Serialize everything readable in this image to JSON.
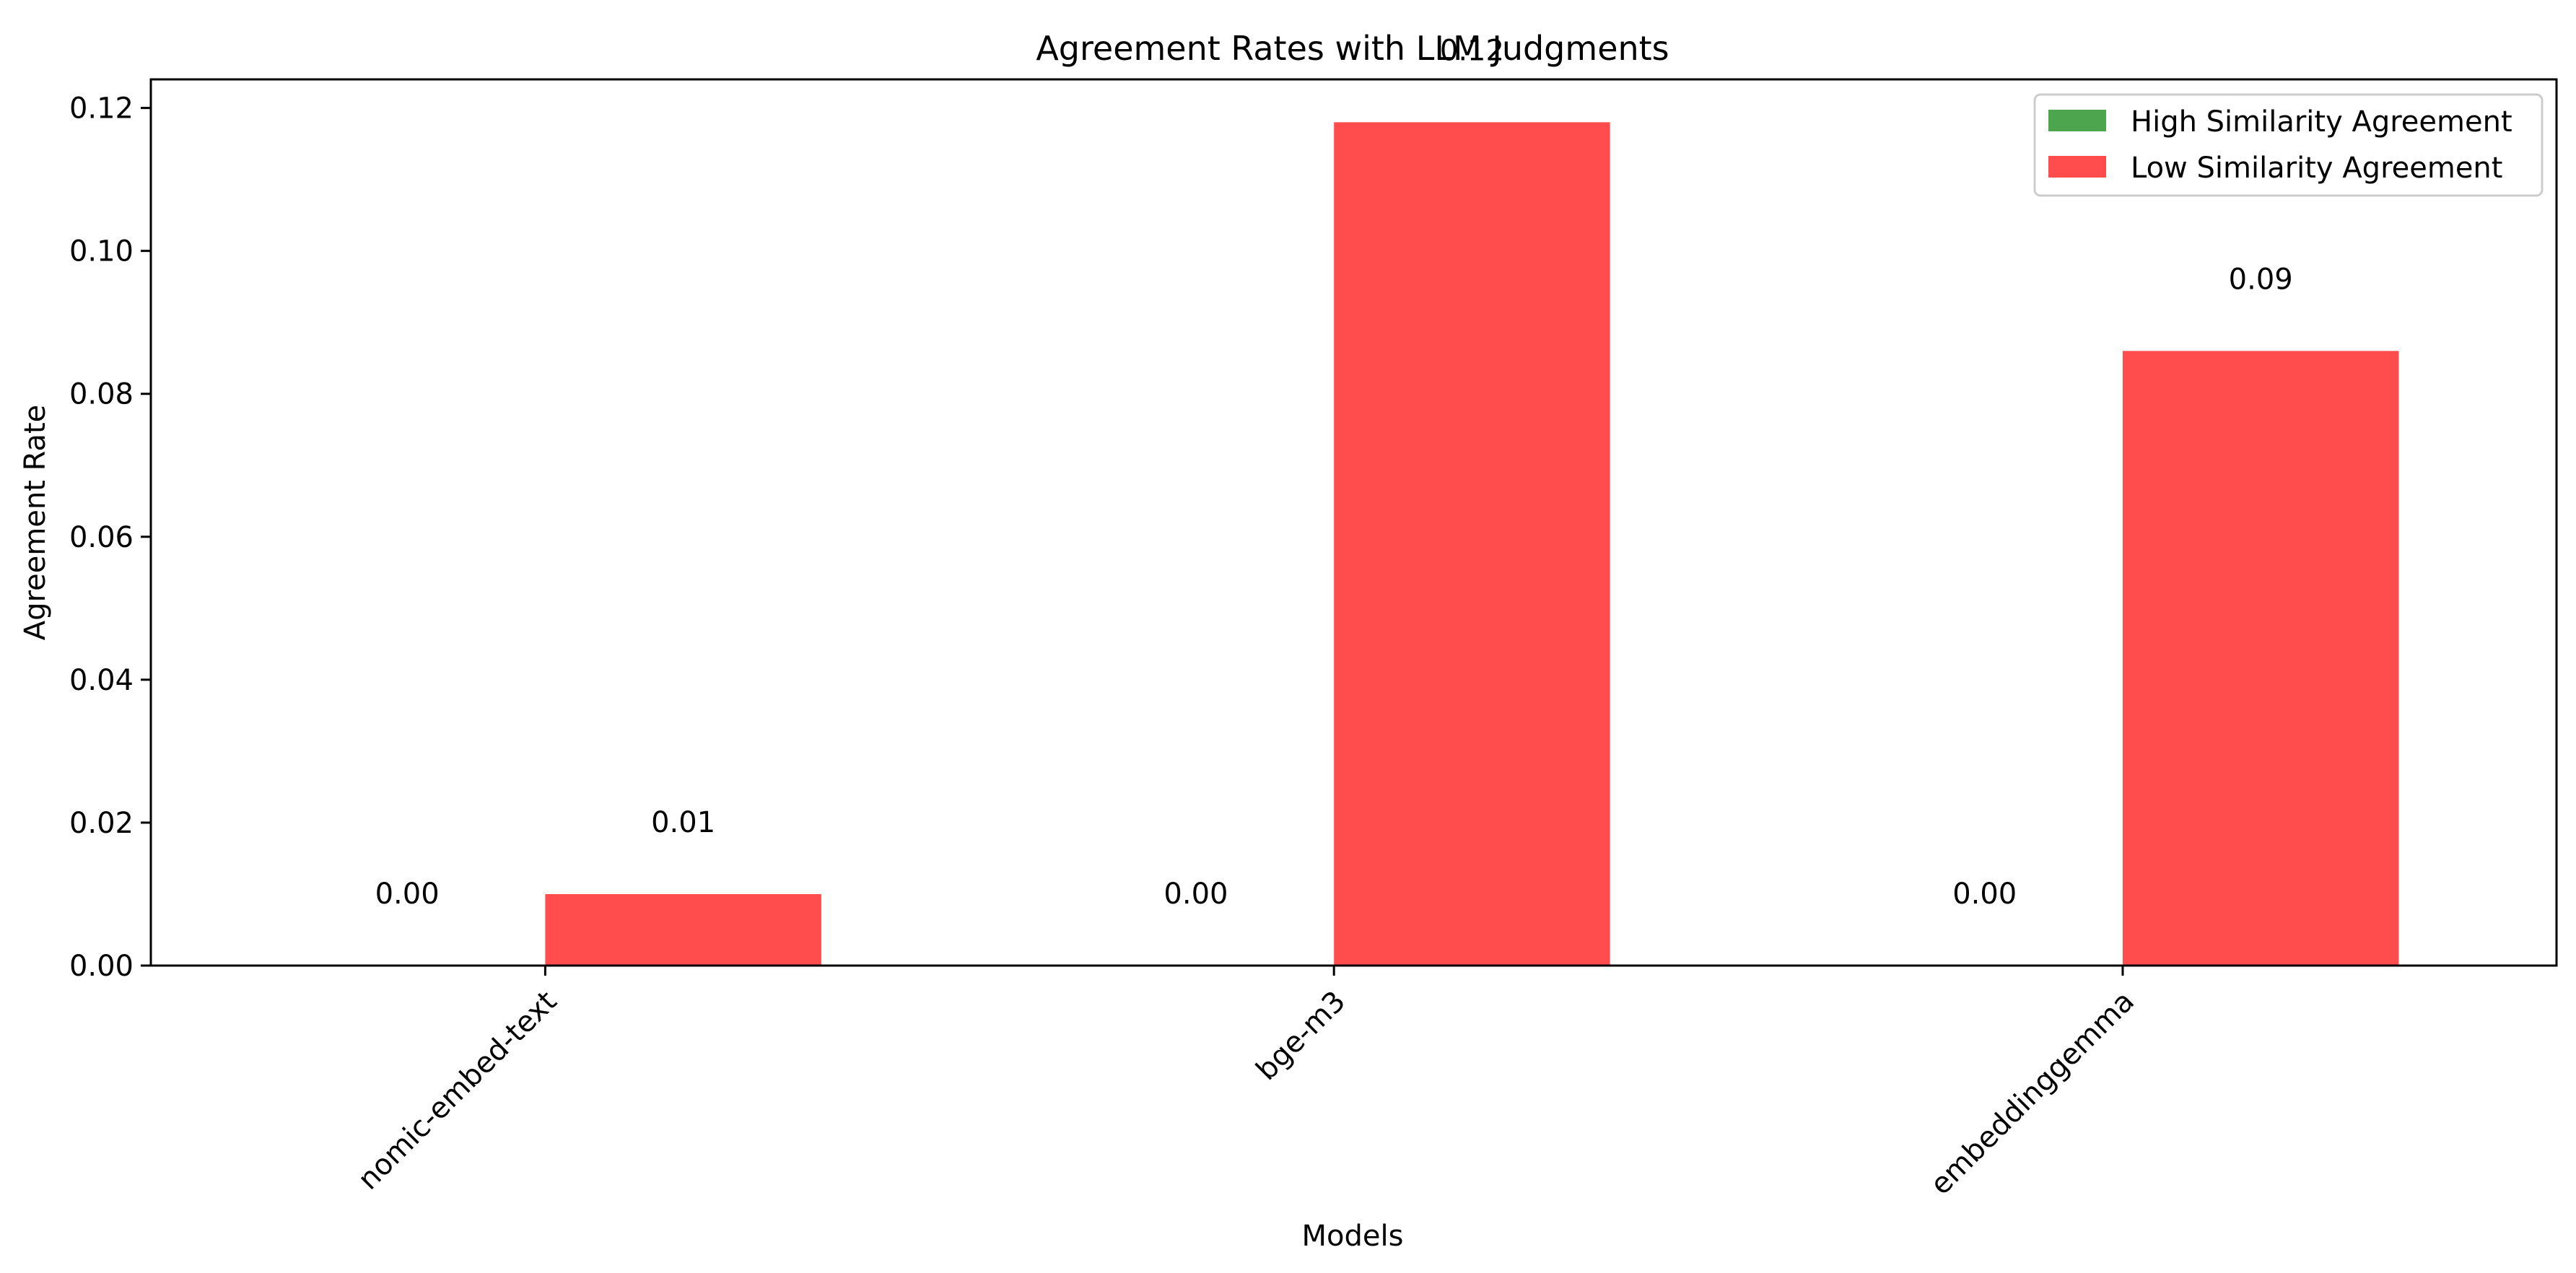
{
  "chart_data": {
    "type": "bar",
    "title": "Agreement Rates with LLM Judgments",
    "xlabel": "Models",
    "ylabel": "Agreement Rate",
    "categories": [
      "nomic-embed-text",
      "bge-m3",
      "embeddinggemma"
    ],
    "series": [
      {
        "name": "High Similarity Agreement",
        "color": "#4da64d",
        "values": [
          0.0,
          0.0,
          0.0
        ],
        "labels": [
          "0.00",
          "0.00",
          "0.00"
        ]
      },
      {
        "name": "Low Similarity Agreement",
        "color": "#ff4c4c",
        "values": [
          0.01,
          0.118,
          0.086
        ],
        "labels": [
          "0.01",
          "0.12",
          "0.09"
        ]
      }
    ],
    "ylim": [
      0,
      0.124
    ],
    "yticks": [
      "0.00",
      "0.02",
      "0.04",
      "0.06",
      "0.08",
      "0.10",
      "0.12"
    ],
    "grid": false,
    "legend_position": "top-right"
  }
}
